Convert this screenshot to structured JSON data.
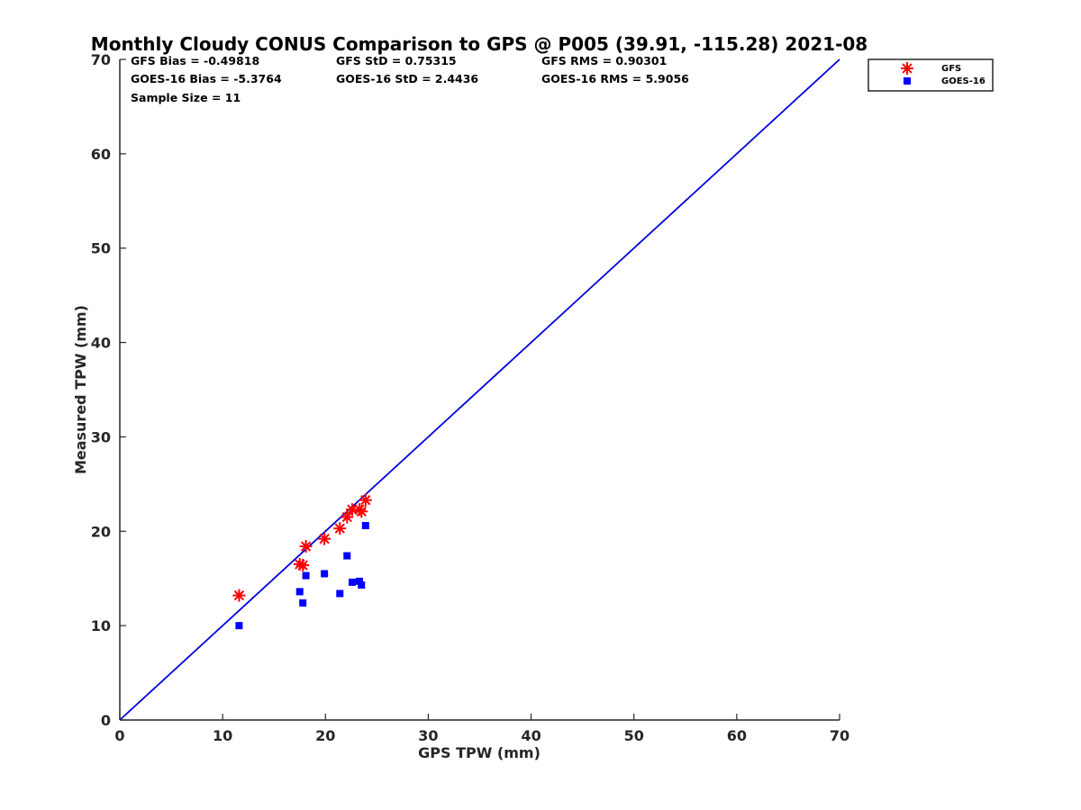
{
  "chart_data": {
    "type": "scatter",
    "title": "Monthly Cloudy CONUS Comparison to GPS @ P005 (39.91, -115.28) 2021-08",
    "xlabel": "GPS TPW (mm)",
    "ylabel": "Measured TPW (mm)",
    "xlim": [
      0,
      70
    ],
    "ylim": [
      0,
      70
    ],
    "xticks": [
      "0",
      "10",
      "20",
      "30",
      "40",
      "50",
      "60",
      "70"
    ],
    "yticks": [
      "0",
      "10",
      "20",
      "30",
      "40",
      "50",
      "60",
      "70"
    ],
    "grid": false,
    "legend_position": "top-right outside",
    "stats": [
      [
        "GFS Bias = -0.49818",
        "GFS StD = 0.75315",
        "GFS RMS = 0.90301"
      ],
      [
        "GOES-16 Bias = -5.3764",
        "GOES-16 StD = 2.4436",
        "GOES-16 RMS = 5.9056"
      ],
      [
        "Sample Size = 11"
      ]
    ],
    "reference_line": {
      "from": [
        0,
        0
      ],
      "to": [
        70,
        70
      ],
      "color": "#0000dd"
    },
    "series": [
      {
        "name": "GFS",
        "marker": "asterisk",
        "color": "#ff0000",
        "points": [
          [
            11.6,
            13.2
          ],
          [
            17.5,
            16.5
          ],
          [
            17.8,
            16.4
          ],
          [
            18.1,
            18.4
          ],
          [
            19.9,
            19.2
          ],
          [
            21.4,
            20.3
          ],
          [
            22.1,
            21.5
          ],
          [
            22.6,
            22.3
          ],
          [
            23.3,
            22.3
          ],
          [
            23.5,
            22.1
          ],
          [
            23.9,
            23.3
          ]
        ]
      },
      {
        "name": "GOES-16",
        "marker": "square",
        "color": "#0000ff",
        "points": [
          [
            11.6,
            10.0
          ],
          [
            17.5,
            13.6
          ],
          [
            17.8,
            12.4
          ],
          [
            18.1,
            15.3
          ],
          [
            19.9,
            15.5
          ],
          [
            21.4,
            13.4
          ],
          [
            22.1,
            17.4
          ],
          [
            22.6,
            14.6
          ],
          [
            23.3,
            14.7
          ],
          [
            23.5,
            14.3
          ],
          [
            23.9,
            20.6
          ]
        ]
      }
    ]
  }
}
